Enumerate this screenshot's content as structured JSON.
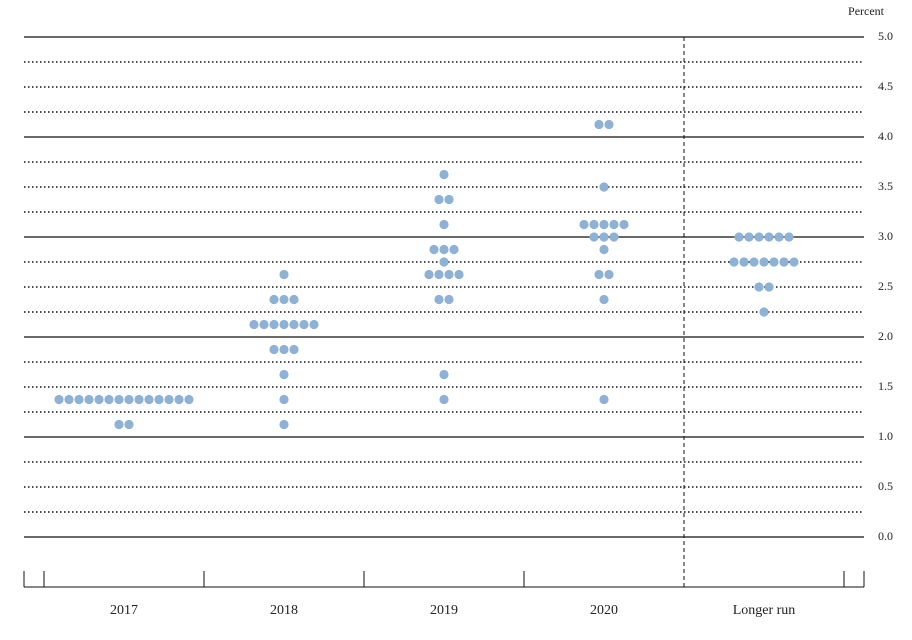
{
  "chart_data": {
    "type": "dot",
    "ylabel": "Percent",
    "ylim": [
      0,
      5
    ],
    "yticks": [
      {
        "value": 0,
        "label": "0.0"
      },
      {
        "value": 0.5,
        "label": "0.5"
      },
      {
        "value": 1,
        "label": "1.0"
      },
      {
        "value": 1.5,
        "label": "1.5"
      },
      {
        "value": 2,
        "label": "2.0"
      },
      {
        "value": 2.5,
        "label": "2.5"
      },
      {
        "value": 3,
        "label": "3.0"
      },
      {
        "value": 3.5,
        "label": "3.5"
      },
      {
        "value": 4,
        "label": "4.0"
      },
      {
        "value": 4.5,
        "label": "4.5"
      },
      {
        "value": 5,
        "label": "5.0"
      }
    ],
    "minor_yticks": [
      0.25,
      0.75,
      1.25,
      1.75,
      2.25,
      2.75,
      3.25,
      3.75,
      4.25,
      4.75
    ],
    "color": "#8eb1d6",
    "columns": [
      {
        "label": "2017",
        "dots": [
          {
            "value": 1.375,
            "count": 14
          },
          {
            "value": 1.125,
            "count": 2
          }
        ]
      },
      {
        "label": "2018",
        "dots": [
          {
            "value": 2.625,
            "count": 1
          },
          {
            "value": 2.375,
            "count": 3
          },
          {
            "value": 2.125,
            "count": 7
          },
          {
            "value": 1.875,
            "count": 3
          },
          {
            "value": 1.625,
            "count": 1
          },
          {
            "value": 1.375,
            "count": 1
          },
          {
            "value": 1.125,
            "count": 1
          }
        ]
      },
      {
        "label": "2019",
        "dots": [
          {
            "value": 3.625,
            "count": 1
          },
          {
            "value": 3.375,
            "count": 2
          },
          {
            "value": 3.125,
            "count": 1
          },
          {
            "value": 2.875,
            "count": 3
          },
          {
            "value": 2.75,
            "count": 1
          },
          {
            "value": 2.625,
            "count": 4
          },
          {
            "value": 2.375,
            "count": 2
          },
          {
            "value": 1.625,
            "count": 1
          },
          {
            "value": 1.375,
            "count": 1
          }
        ]
      },
      {
        "label": "2020",
        "dots": [
          {
            "value": 4.125,
            "count": 2
          },
          {
            "value": 3.5,
            "count": 1
          },
          {
            "value": 3.125,
            "count": 5
          },
          {
            "value": 3,
            "count": 3
          },
          {
            "value": 2.875,
            "count": 1
          },
          {
            "value": 2.625,
            "count": 2
          },
          {
            "value": 2.375,
            "count": 1
          },
          {
            "value": 1.375,
            "count": 1
          }
        ]
      },
      {
        "label": "Longer run",
        "dots": [
          {
            "value": 3,
            "count": 6
          },
          {
            "value": 2.75,
            "count": 7
          },
          {
            "value": 2.5,
            "count": 2
          },
          {
            "value": 2.25,
            "count": 1
          }
        ]
      }
    ]
  }
}
